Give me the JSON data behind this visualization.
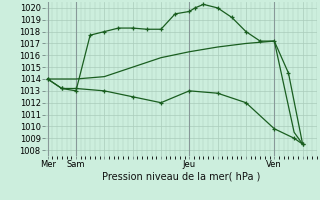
{
  "background_color": "#cceedd",
  "grid_color": "#aaccbb",
  "line_color": "#1a5e20",
  "xlabel": "Pression niveau de la mer( hPa )",
  "ylim": [
    1007.5,
    1020.5
  ],
  "yticks": [
    1008,
    1009,
    1010,
    1011,
    1012,
    1013,
    1014,
    1015,
    1016,
    1017,
    1018,
    1019,
    1020
  ],
  "xlim": [
    -0.1,
    9.5
  ],
  "xtick_labels": [
    "Mer",
    "Sam",
    "",
    "",
    "",
    "Jeu",
    "",
    "",
    "Ven",
    ""
  ],
  "xtick_positions": [
    0,
    1,
    2,
    3,
    4,
    5,
    6,
    7,
    8,
    9
  ],
  "vlines": [
    0,
    1,
    5,
    8
  ],
  "series1_x": [
    0,
    0.5,
    1,
    1.5,
    2,
    2.5,
    3,
    3.5,
    4,
    4.5,
    5,
    5.2,
    5.5,
    6,
    6.5,
    7,
    7.5,
    8,
    8.5,
    9
  ],
  "series1_y": [
    1014,
    1013.2,
    1013,
    1017.7,
    1018.0,
    1018.3,
    1018.3,
    1018.2,
    1018.2,
    1019.5,
    1019.7,
    1020.0,
    1020.3,
    1020.0,
    1019.2,
    1018.0,
    1017.2,
    1017.2,
    1014.5,
    1008.5
  ],
  "series2_x": [
    0,
    1,
    2,
    3,
    4,
    5,
    6,
    7,
    8,
    8.7,
    9
  ],
  "series2_y": [
    1014,
    1014.0,
    1014.2,
    1015.0,
    1015.8,
    1016.3,
    1016.7,
    1017.0,
    1017.2,
    1009.5,
    1008.5
  ],
  "series3_x": [
    0,
    0.5,
    1,
    2,
    3,
    4,
    5,
    6,
    7,
    8,
    8.7,
    9
  ],
  "series3_y": [
    1014,
    1013.2,
    1013.2,
    1013.0,
    1012.5,
    1012.0,
    1013.0,
    1012.8,
    1012.0,
    1009.8,
    1009.0,
    1008.5
  ]
}
